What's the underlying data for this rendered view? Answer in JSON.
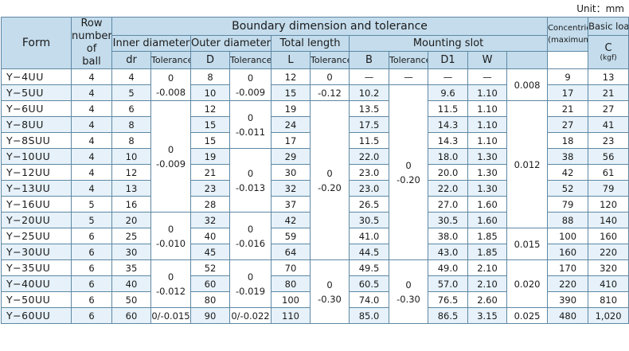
{
  "unit_note": "Unit：mm",
  "headers": {
    "form": "Form",
    "row_ball": [
      "Row",
      "number",
      "of",
      "ball"
    ],
    "boundary": "Boundary dimension and tolerance",
    "inner_diameter": "Inner diameter",
    "outer_diameter": "Outer diameter",
    "total_length": "Total length",
    "mounting_slot": "Mounting slot",
    "concentricity": [
      "Concentricity",
      "(maximum)"
    ],
    "load_rating": "Basic load rating",
    "dr": "dr",
    "tolerance": "Tolerance",
    "D": "D",
    "L": "L",
    "B": "B",
    "D1": "D1",
    "W": "W",
    "C": "C",
    "Co": "Co",
    "kgf": "(kgf)"
  },
  "rows": [
    {
      "form": "Y−4UU",
      "ball": "4",
      "dr": "4",
      "D": "8",
      "L": "12",
      "B": "—",
      "D1": "—",
      "W": "—",
      "C": "9",
      "Co": "13"
    },
    {
      "form": "Y−5UU",
      "ball": "4",
      "dr": "5",
      "D": "10",
      "L": "15",
      "B": "10.2",
      "D1": "9.6",
      "W": "1.10",
      "C": "17",
      "Co": "21"
    },
    {
      "form": "Y−6UU",
      "ball": "4",
      "dr": "6",
      "D": "12",
      "L": "19",
      "B": "13.5",
      "D1": "11.5",
      "W": "1.10",
      "C": "21",
      "Co": "27"
    },
    {
      "form": "Y−8UU",
      "ball": "4",
      "dr": "8",
      "D": "15",
      "L": "24",
      "B": "17.5",
      "D1": "14.3",
      "W": "1.10",
      "C": "27",
      "Co": "41"
    },
    {
      "form": "Y−8SUU",
      "ball": "4",
      "dr": "8",
      "D": "15",
      "L": "17",
      "B": "11.5",
      "D1": "14.3",
      "W": "1.10",
      "C": "18",
      "Co": "23"
    },
    {
      "form": "Y−10UU",
      "ball": "4",
      "dr": "10",
      "D": "19",
      "L": "29",
      "B": "22.0",
      "D1": "18.0",
      "W": "1.30",
      "C": "38",
      "Co": "56"
    },
    {
      "form": "Y−12UU",
      "ball": "4",
      "dr": "12",
      "D": "21",
      "L": "30",
      "B": "23.0",
      "D1": "20.0",
      "W": "1.30",
      "C": "42",
      "Co": "61"
    },
    {
      "form": "Y−13UU",
      "ball": "4",
      "dr": "13",
      "D": "23",
      "L": "32",
      "B": "23.0",
      "D1": "22.0",
      "W": "1.30",
      "C": "52",
      "Co": "79"
    },
    {
      "form": "Y−16UU",
      "ball": "5",
      "dr": "16",
      "D": "28",
      "L": "37",
      "B": "26.5",
      "D1": "27.0",
      "W": "1.60",
      "C": "79",
      "Co": "120"
    },
    {
      "form": "Y−20UU",
      "ball": "5",
      "dr": "20",
      "D": "32",
      "L": "42",
      "B": "30.5",
      "D1": "30.5",
      "W": "1.60",
      "C": "88",
      "Co": "140"
    },
    {
      "form": "Y−25UU",
      "ball": "6",
      "dr": "25",
      "D": "40",
      "L": "59",
      "B": "41.0",
      "D1": "38.0",
      "W": "1.85",
      "C": "100",
      "Co": "160"
    },
    {
      "form": "Y−30UU",
      "ball": "6",
      "dr": "30",
      "D": "45",
      "L": "64",
      "B": "44.5",
      "D1": "43.0",
      "W": "1.85",
      "C": "160",
      "Co": "220"
    },
    {
      "form": "Y−35UU",
      "ball": "6",
      "dr": "35",
      "D": "52",
      "L": "70",
      "B": "49.5",
      "D1": "49.0",
      "W": "2.10",
      "C": "170",
      "Co": "320"
    },
    {
      "form": "Y−40UU",
      "ball": "6",
      "dr": "40",
      "D": "60",
      "L": "80",
      "B": "60.5",
      "D1": "57.0",
      "W": "2.10",
      "C": "220",
      "Co": "410"
    },
    {
      "form": "Y−50UU",
      "ball": "6",
      "dr": "50",
      "D": "80",
      "L": "100",
      "B": "74.0",
      "D1": "76.5",
      "W": "2.60",
      "C": "390",
      "Co": "810"
    },
    {
      "form": "Y−60UU",
      "ball": "6",
      "dr": "60",
      "D": "90",
      "L": "110",
      "B": "85.0",
      "D1": "86.5",
      "W": "3.15",
      "C": "480",
      "Co": "1,020"
    }
  ],
  "merged": {
    "tol_dr": [
      [
        "0",
        "-0.008"
      ],
      [
        "0",
        "-0.009"
      ],
      [
        "0",
        "-0.010"
      ],
      [
        "0",
        "-0.012"
      ],
      [
        "0/-0.015"
      ]
    ],
    "tol_D": [
      [
        "0",
        "-0.009"
      ],
      [
        "0",
        "-0.011"
      ],
      [
        "0",
        "-0.013"
      ],
      [
        "0",
        "-0.016"
      ],
      [
        "0",
        "-0.019"
      ],
      [
        "0/-0.022"
      ]
    ],
    "tol_L": [
      [
        "0"
      ],
      [
        "-0.12"
      ],
      [
        "0",
        "-0.20"
      ],
      [
        "0",
        "-0.30"
      ]
    ],
    "tol_B": [
      [
        "—"
      ],
      [
        "0",
        "-0.20"
      ],
      [
        "0",
        "-0.30"
      ]
    ],
    "concentricity": [
      [
        "0.008"
      ],
      [
        "0.012"
      ],
      [
        "0.015"
      ],
      [
        "0.020"
      ],
      [
        "0.025"
      ]
    ]
  },
  "colors": {
    "header_bg": "#c4dcec",
    "row_shade": "#e6f1f9",
    "border": "#5e88a4"
  }
}
